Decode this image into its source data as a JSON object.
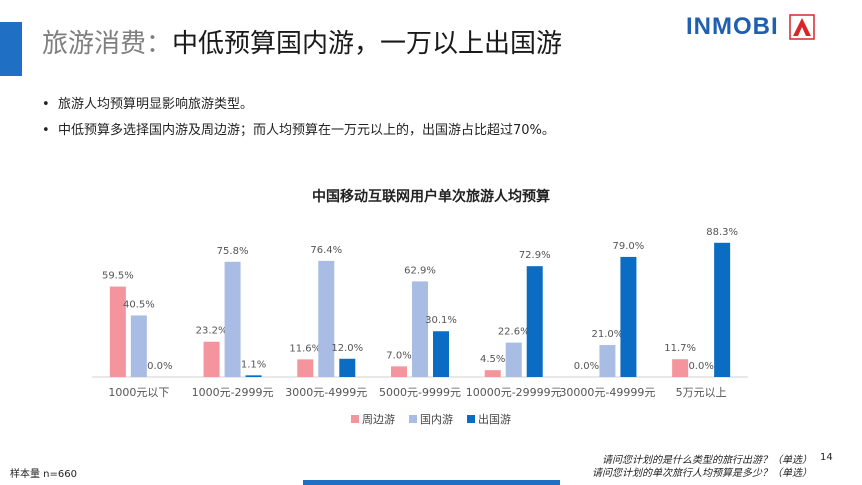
{
  "header": {
    "title_part1": "旅游消费：",
    "title_part2": "中低预算国内游，一万以上出国游",
    "logo_text": "INMOBI"
  },
  "bullets": [
    "旅游人均预算明显影响旅游类型。",
    "中低预算多选择国内游及周边游；而人均预算在一万元以上的，出国游占比超过70%。"
  ],
  "chart_data": {
    "type": "bar",
    "title": "中国移动互联网用户单次旅游人均预算",
    "categories": [
      "1000元以下",
      "1000元-2999元",
      "3000元-4999元",
      "5000元-9999元",
      "10000元-29999元",
      "30000元-49999元",
      "5万元以上"
    ],
    "series": [
      {
        "name": "周边游",
        "color": "#F4949C",
        "values": [
          59.5,
          23.2,
          11.6,
          7.0,
          4.5,
          0.0,
          11.7
        ]
      },
      {
        "name": "国内游",
        "color": "#A9BCE4",
        "values": [
          40.5,
          75.8,
          76.4,
          62.9,
          22.6,
          21.0,
          0.0
        ]
      },
      {
        "name": "出国游",
        "color": "#0A6CC2",
        "values": [
          0.0,
          1.1,
          12.0,
          30.1,
          72.9,
          79.0,
          88.3
        ]
      }
    ],
    "ylim": [
      0,
      100
    ],
    "grid": false,
    "legend_position": "bottom"
  },
  "footer": {
    "sample": "样本量 n=660",
    "note_line1": "请问您计划的是什么类型的旅行出游？（单选）",
    "note_line2": "请问您计划的单次旅行人均预算是多少？（单选）",
    "page_number": "14"
  },
  "colors": {
    "accent": "#1F6FC5",
    "logo": "#1F5FAF",
    "logo_mark": "#D9252A"
  }
}
